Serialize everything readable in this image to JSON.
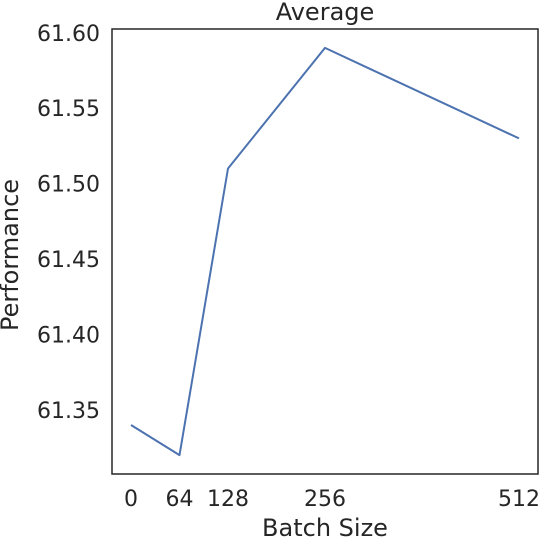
{
  "chart_data": {
    "type": "line",
    "title": "Average",
    "xlabel": "Batch Size",
    "ylabel": "Performance",
    "x": [
      0,
      64,
      128,
      256,
      512
    ],
    "xticks": [
      "0",
      "64",
      "128",
      "256",
      "512"
    ],
    "series": [
      {
        "values": [
          61.34,
          61.32,
          61.51,
          61.59,
          61.53
        ],
        "color": "#4c72b0"
      }
    ],
    "yticks": [
      "61.35",
      "61.40",
      "61.45",
      "61.50",
      "61.55",
      "61.60"
    ],
    "ytick_values": [
      61.35,
      61.4,
      61.45,
      61.5,
      61.55,
      61.6
    ],
    "xlim": [
      -25,
      537
    ],
    "ylim": [
      61.3075,
      61.6025
    ],
    "grid": false,
    "legend": false
  }
}
